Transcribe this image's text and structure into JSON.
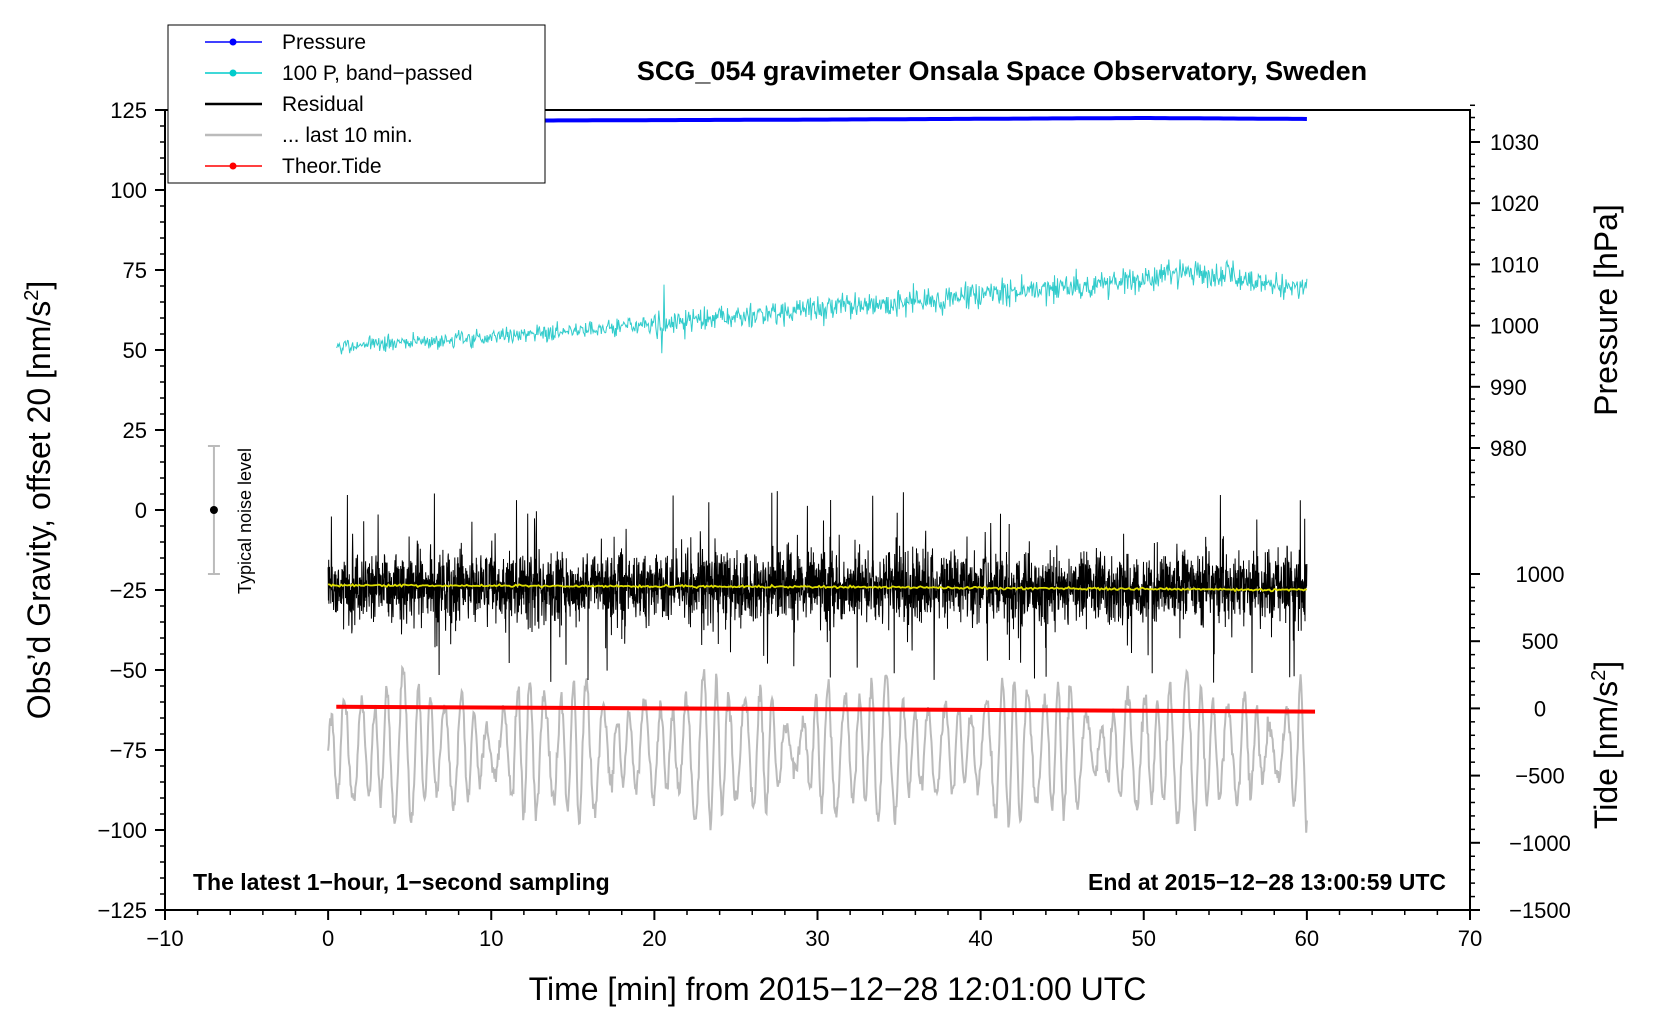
{
  "chart_data": {
    "type": "line",
    "title": "SCG_054 gravimeter Onsala Space Observatory, Sweden",
    "xlabel": "Time [min] from 2015−12−28 12:01:00 UTC",
    "ylabel_left": "Obs’d Gravity, offset 20 [nm/s",
    "ylabel_left_sup": "2",
    "ylabel_left_end": "]",
    "ylabel_pressure": "Pressure [hPa]",
    "ylabel_tide": "Tide [nm/s",
    "ylabel_tide_sup": "2",
    "ylabel_tide_end": "]",
    "xlim": [
      -10,
      70
    ],
    "ylim_left": [
      -125,
      125
    ],
    "ylim_pressure_ticks": [
      980,
      990,
      1000,
      1010,
      1020,
      1030
    ],
    "ylim_tide_ticks": [
      -1500,
      -1000,
      -500,
      0,
      500,
      1000
    ],
    "x_ticks": [
      -10,
      0,
      10,
      20,
      30,
      40,
      50,
      60,
      70
    ],
    "x_tick_labels": [
      "−10",
      "0",
      "10",
      "20",
      "30",
      "40",
      "50",
      "60",
      "70"
    ],
    "y_ticks_left": [
      -125,
      -100,
      -75,
      -50,
      -25,
      0,
      25,
      50,
      75,
      100,
      125
    ],
    "y_tick_labels_left": [
      "−125",
      "−100",
      "−75",
      "−50",
      "−25",
      "0",
      "25",
      "50",
      "75",
      "100",
      "125"
    ],
    "pressure_tick_labels": [
      "980",
      "990",
      "1000",
      "1010",
      "1020",
      "1030"
    ],
    "tide_tick_labels": [
      "−1500",
      "−1000",
      "−500",
      "0",
      "500",
      "1000"
    ],
    "annotations": {
      "left": "The latest 1−hour, 1−second sampling",
      "right": "End at 2015−12−28 13:00:59 UTC",
      "noise_label": "Typical noise level",
      "noise_center": 0,
      "noise_half_range": 20,
      "noise_x": -7
    },
    "legend": [
      {
        "label": "Pressure",
        "color": "#0000ff",
        "marker": true
      },
      {
        "label": "100 P, band−passed",
        "color": "#00cccc",
        "marker": true
      },
      {
        "label": "Residual",
        "color": "#000000",
        "marker": false
      },
      {
        "label": "... last 10 min.",
        "color": "#bbbbbb",
        "marker": false
      },
      {
        "label": "Theor.Tide",
        "color": "#ff0000",
        "marker": true
      }
    ],
    "series": [
      {
        "name": "Pressure",
        "color": "#0000ff",
        "x": [
          0,
          30,
          50,
          60
        ],
        "values": [
          121.5,
          122.0,
          122.5,
          122.2
        ],
        "note": "plotted on left-axis scale, approx 1034 hPa"
      },
      {
        "name": "100 P, band-passed",
        "color": "#33cccc",
        "x": [
          0,
          10,
          20,
          30,
          40,
          50,
          53,
          60
        ],
        "values": [
          51,
          54,
          58,
          63,
          67,
          72,
          75,
          69
        ],
        "noise": 3
      },
      {
        "name": "Residual",
        "color": "#000000",
        "x": [
          0,
          60
        ],
        "values": [
          -24,
          -24
        ],
        "spread": 20
      },
      {
        "name": "Residual mean",
        "color": "#dddd00",
        "x": [
          0,
          30,
          60
        ],
        "values": [
          -23.5,
          -24,
          -25
        ]
      },
      {
        "name": "... last 10 min.",
        "color": "#bbbbbb",
        "x": [
          0,
          60
        ],
        "values": [
          -75,
          -75
        ],
        "amplitude": 20
      },
      {
        "name": "Theor.Tide",
        "color": "#ff0000",
        "x": [
          0.5,
          60.5
        ],
        "values": [
          -61.5,
          -63
        ]
      }
    ],
    "grid": false,
    "legend_position": "top-left"
  }
}
